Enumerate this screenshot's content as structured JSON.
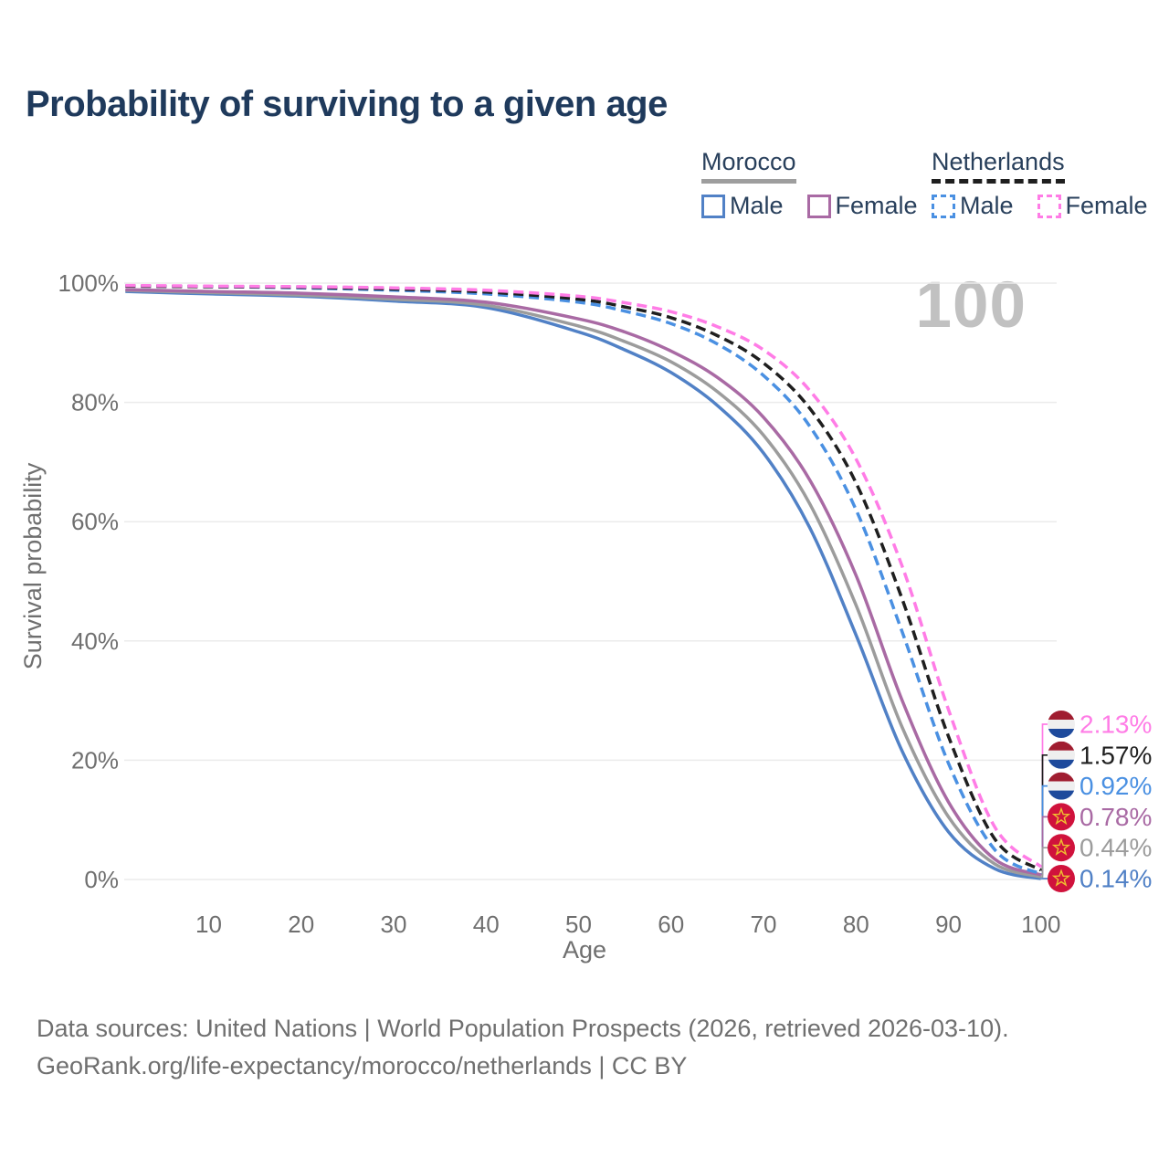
{
  "title": "Probability of surviving to a given age",
  "watermark_age": "100",
  "colors": {
    "title_text": "#1f3a5c",
    "legend_text": "#29405c",
    "axis_text": "#6f6f6f",
    "grid_line": "#ebebeb",
    "watermark_text": "#c1c1c1",
    "footer_text": "#6f6f6f",
    "morocco_underline": "#9e9e9e",
    "netherlands_underline": "#1f1f1f",
    "flag_nl_red": "#a01d30",
    "flag_nl_white": "#efefef",
    "flag_nl_blue": "#1e4a9c",
    "flag_ma_red": "#d0123c",
    "flag_ma_star": "#f0c030"
  },
  "legend": {
    "groups": [
      {
        "name": "Morocco",
        "line_style": "solid",
        "line_color": "#9e9e9e",
        "items": [
          {
            "label": "Male",
            "color": "#5181c6",
            "dashed": false
          },
          {
            "label": "Female",
            "color": "#a96aa4",
            "dashed": false
          }
        ]
      },
      {
        "name": "Netherlands",
        "line_style": "dashed",
        "line_color": "#1f1f1f",
        "items": [
          {
            "label": "Male",
            "color": "#4a90e2",
            "dashed": true
          },
          {
            "label": "Female",
            "color": "#ff7ce6",
            "dashed": true
          }
        ]
      }
    ]
  },
  "chart_data": {
    "type": "line",
    "title": "Probability of surviving to a given age",
    "xlabel": "Age",
    "ylabel": "Survival probability",
    "xlim": [
      1,
      101.5
    ],
    "ylim": [
      0,
      100
    ],
    "grid": true,
    "legend_position": "top-right",
    "hovered_x": 100,
    "x": [
      1,
      10,
      20,
      30,
      40,
      50,
      55,
      60,
      65,
      70,
      75,
      80,
      85,
      90,
      95,
      100
    ],
    "x_ticks": {
      "values": [
        10,
        20,
        30,
        40,
        50,
        60,
        70,
        80,
        90,
        100
      ],
      "labels": [
        "10",
        "20",
        "30",
        "40",
        "50",
        "60",
        "70",
        "80",
        "90",
        "100"
      ]
    },
    "y_ticks": {
      "values": [
        0,
        20,
        40,
        60,
        80,
        100
      ],
      "labels": [
        "0%",
        "20%",
        "40%",
        "60%",
        "80%",
        "100%"
      ]
    },
    "series": [
      {
        "name": "Morocco Male",
        "country": "Morocco",
        "sex": "Male",
        "color": "#5181c6",
        "dashed": false,
        "flag": "ma",
        "end_label": "0.14%",
        "values": [
          98.6,
          98.2,
          97.8,
          97.0,
          95.9,
          91.8,
          88.8,
          85.0,
          79.5,
          71.5,
          59.0,
          41.0,
          21.5,
          8.0,
          1.8,
          0.14
        ]
      },
      {
        "name": "Morocco Both sexes",
        "country": "Morocco",
        "sex": "Both",
        "color": "#9c9c9c",
        "dashed": false,
        "flag": "ma",
        "end_label": "0.44%",
        "values": [
          98.8,
          98.4,
          98.0,
          97.3,
          96.3,
          92.8,
          90.2,
          86.8,
          81.8,
          74.5,
          63.0,
          46.0,
          25.5,
          10.5,
          2.6,
          0.44
        ]
      },
      {
        "name": "Morocco Female",
        "country": "Morocco",
        "sex": "Female",
        "color": "#a96aa4",
        "dashed": false,
        "flag": "ma",
        "end_label": "0.78%",
        "values": [
          98.9,
          98.6,
          98.3,
          97.7,
          96.8,
          94.0,
          91.8,
          88.6,
          84.2,
          77.5,
          67.0,
          51.0,
          30.0,
          13.0,
          3.4,
          0.78
        ]
      },
      {
        "name": "Netherlands Male",
        "country": "Netherlands",
        "sex": "Male",
        "color": "#4a90e2",
        "dashed": true,
        "flag": "nl",
        "end_label": "0.92%",
        "values": [
          99.5,
          99.4,
          99.2,
          98.8,
          98.2,
          96.8,
          95.3,
          93.2,
          89.8,
          84.5,
          76.0,
          62.0,
          41.5,
          19.5,
          5.0,
          0.92
        ]
      },
      {
        "name": "Netherlands Both sexes",
        "country": "Netherlands",
        "sex": "Both",
        "color": "#1f1f1f",
        "dashed": true,
        "flag": "nl",
        "end_label": "1.57%",
        "values": [
          99.5,
          99.4,
          99.3,
          99.0,
          98.5,
          97.3,
          96.0,
          94.2,
          91.2,
          86.6,
          79.0,
          66.5,
          47.0,
          24.0,
          6.8,
          1.57
        ]
      },
      {
        "name": "Netherlands Female",
        "country": "Netherlands",
        "sex": "Female",
        "color": "#ff7ce6",
        "dashed": true,
        "flag": "nl",
        "end_label": "2.13%",
        "values": [
          99.6,
          99.5,
          99.4,
          99.2,
          98.8,
          97.8,
          96.7,
          95.2,
          92.7,
          88.8,
          82.0,
          70.5,
          52.5,
          28.5,
          8.8,
          2.13
        ]
      }
    ]
  },
  "footer": {
    "line1": "Data sources: United Nations | World Population Prospects (2026, retrieved 2026-03-10).",
    "line2": "GeoRank.org/life-expectancy/morocco/netherlands | CC BY"
  }
}
